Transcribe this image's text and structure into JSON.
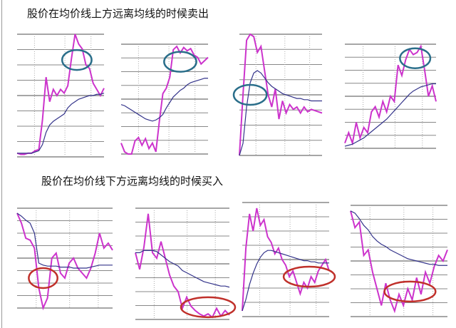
{
  "titles": {
    "sell": "股价在均价线上方远离均线的时候卖出",
    "buy": "股价在均价线下方远离均线的时候买入"
  },
  "colors": {
    "price": "#cc33cc",
    "average": "#33338a",
    "sell_marker": "#2a6e8a",
    "buy_marker": "#c0302a",
    "grid": "#888888"
  },
  "chart_data": [
    {
      "type": "line",
      "group": "sell",
      "ylim": [
        0,
        100
      ],
      "grid": true,
      "series": [
        {
          "role": "price",
          "values": [
            3,
            2,
            2,
            3,
            3,
            5,
            6,
            30,
            65,
            45,
            55,
            50,
            55,
            52,
            58,
            80,
            100,
            92,
            88,
            75,
            72,
            60,
            55,
            50,
            56
          ]
        },
        {
          "role": "average",
          "values": [
            3,
            3,
            3,
            3,
            3,
            4,
            5,
            10,
            20,
            26,
            29,
            31,
            33,
            35,
            40,
            43,
            45,
            47,
            48,
            49,
            50,
            50,
            51,
            51,
            52
          ]
        }
      ],
      "highlight": {
        "from_index": 14,
        "to_index": 19
      }
    },
    {
      "type": "line",
      "group": "sell",
      "ylim": [
        0,
        100
      ],
      "grid": true,
      "series": [
        {
          "role": "price",
          "values": [
            10,
            2,
            0,
            0,
            12,
            15,
            8,
            14,
            5,
            10,
            2,
            30,
            55,
            60,
            70,
            95,
            98,
            92,
            97,
            94,
            96,
            90,
            88,
            82,
            85,
            88
          ]
        },
        {
          "role": "average",
          "values": [
            45,
            44,
            42,
            40,
            38,
            36,
            34,
            32,
            31,
            30,
            31,
            33,
            36,
            42,
            47,
            52,
            55,
            58,
            60,
            63,
            65,
            66,
            67,
            68,
            69,
            69
          ]
        }
      ],
      "highlight": {
        "from_index": 14,
        "to_index": 20
      }
    },
    {
      "type": "line",
      "group": "sell",
      "ylim": [
        0,
        100
      ],
      "grid": true,
      "series": [
        {
          "role": "price",
          "values": [
            0,
            50,
            95,
            100,
            98,
            85,
            90,
            70,
            50,
            40,
            55,
            30,
            45,
            35,
            42,
            38,
            40,
            35,
            40,
            36,
            38,
            37,
            36,
            35
          ]
        },
        {
          "role": "average",
          "values": [
            0,
            10,
            40,
            60,
            68,
            70,
            68,
            64,
            60,
            57,
            55,
            53,
            51,
            50,
            49,
            48,
            47,
            47,
            46,
            46,
            45,
            45,
            45,
            45
          ]
        }
      ],
      "highlight": {
        "from_index": 0,
        "to_index": 6
      }
    },
    {
      "type": "line",
      "group": "sell",
      "ylim": [
        0,
        100
      ],
      "grid": true,
      "series": [
        {
          "role": "price",
          "values": [
            5,
            15,
            5,
            25,
            10,
            20,
            15,
            35,
            40,
            30,
            45,
            35,
            50,
            45,
            80,
            70,
            85,
            95,
            90,
            92,
            98,
            75,
            50,
            60,
            45
          ]
        },
        {
          "role": "average",
          "values": [
            2,
            3,
            4,
            6,
            8,
            10,
            13,
            16,
            19,
            22,
            25,
            28,
            32,
            36,
            40,
            44,
            48,
            52,
            55,
            57,
            59,
            60,
            61,
            62,
            62
          ]
        }
      ],
      "highlight": {
        "from_index": 16,
        "to_index": 21
      }
    },
    {
      "type": "line",
      "group": "buy",
      "ylim": [
        0,
        100
      ],
      "grid": true,
      "series": [
        {
          "role": "price",
          "values": [
            95,
            85,
            70,
            68,
            60,
            20,
            0,
            10,
            50,
            55,
            35,
            30,
            45,
            50,
            40,
            35,
            30,
            40,
            55,
            75,
            60,
            65,
            58
          ]
        },
        {
          "role": "average",
          "values": [
            95,
            92,
            88,
            85,
            75,
            45,
            43,
            42,
            42,
            42,
            41,
            41,
            41,
            40,
            40,
            40,
            40,
            41,
            42,
            43,
            43,
            43,
            43
          ]
        }
      ],
      "highlight": {
        "from_index": 4,
        "to_index": 8
      }
    },
    {
      "type": "line",
      "group": "buy",
      "ylim": [
        0,
        100
      ],
      "grid": true,
      "series": [
        {
          "role": "price",
          "values": [
            60,
            45,
            65,
            95,
            60,
            55,
            70,
            55,
            40,
            30,
            25,
            10,
            20,
            12,
            8,
            5,
            3,
            5,
            2,
            10,
            3,
            8,
            4
          ]
        },
        {
          "role": "average",
          "values": [
            60,
            60,
            62,
            62,
            62,
            61,
            58,
            55,
            52,
            50,
            48,
            44,
            42,
            40,
            38,
            36,
            34,
            33,
            32,
            31,
            30,
            30,
            29
          ]
        }
      ],
      "highlight": {
        "from_index": 12,
        "to_index": 22
      }
    },
    {
      "type": "line",
      "group": "buy",
      "ylim": [
        0,
        100
      ],
      "grid": true,
      "series": [
        {
          "role": "price",
          "values": [
            5,
            60,
            90,
            75,
            95,
            80,
            85,
            70,
            65,
            55,
            60,
            50,
            45,
            35,
            40,
            30,
            20,
            30,
            25,
            35,
            30,
            40,
            45,
            50,
            40
          ]
        },
        {
          "role": "average",
          "values": [
            5,
            15,
            28,
            38,
            46,
            52,
            56,
            58,
            58,
            57,
            56,
            55,
            54,
            53,
            52,
            51,
            50,
            49,
            49,
            48,
            48,
            47,
            47,
            47,
            47
          ]
        }
      ],
      "highlight": {
        "from_index": 13,
        "to_index": 24
      }
    },
    {
      "type": "line",
      "group": "buy",
      "ylim": [
        0,
        100
      ],
      "grid": true,
      "series": [
        {
          "role": "price",
          "values": [
            95,
            80,
            85,
            55,
            60,
            40,
            25,
            10,
            30,
            15,
            5,
            20,
            10,
            25,
            15,
            35,
            20,
            40,
            30,
            45,
            55,
            50,
            60
          ]
        },
        {
          "role": "average",
          "values": [
            95,
            93,
            88,
            82,
            78,
            72,
            68,
            65,
            63,
            60,
            58,
            56,
            54,
            52,
            51,
            50,
            49,
            48,
            47,
            47,
            46,
            46,
            46
          ]
        }
      ],
      "highlight": {
        "from_index": 9,
        "to_index": 18
      }
    }
  ]
}
